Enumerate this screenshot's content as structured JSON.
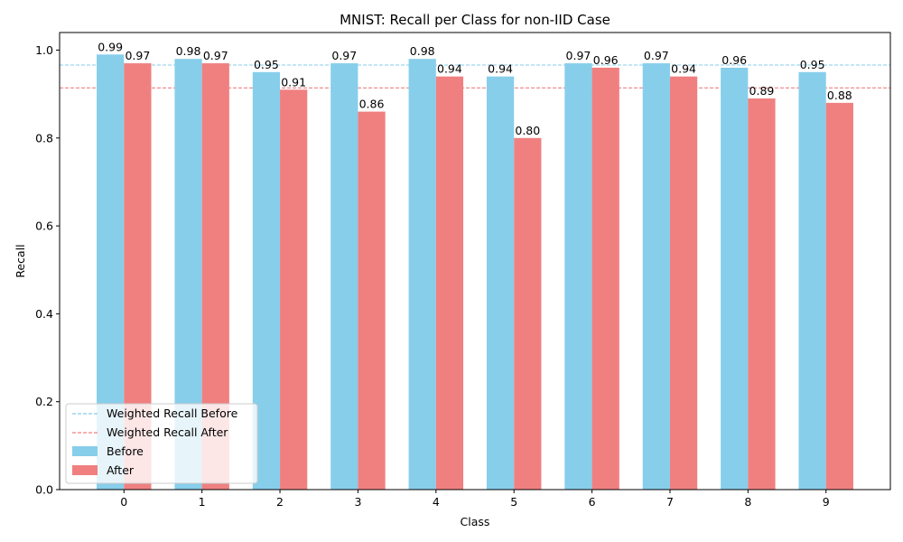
{
  "chart_data": {
    "type": "bar",
    "title": "MNIST: Recall per Class for non-IID Case",
    "xlabel": "Class",
    "ylabel": "Recall",
    "categories": [
      "0",
      "1",
      "2",
      "3",
      "4",
      "5",
      "6",
      "7",
      "8",
      "9"
    ],
    "series": [
      {
        "name": "Before",
        "color": "#87ceeb",
        "values": [
          0.99,
          0.98,
          0.95,
          0.97,
          0.98,
          0.94,
          0.97,
          0.97,
          0.96,
          0.95
        ],
        "labels": [
          "0.99",
          "0.98",
          "0.95",
          "0.97",
          "0.98",
          "0.94",
          "0.97",
          "0.97",
          "0.96",
          "0.95"
        ]
      },
      {
        "name": "After",
        "color": "#f08080",
        "values": [
          0.97,
          0.97,
          0.91,
          0.86,
          0.94,
          0.8,
          0.96,
          0.94,
          0.89,
          0.88
        ],
        "labels": [
          "0.97",
          "0.97",
          "0.91",
          "0.86",
          "0.94",
          "0.80",
          "0.96",
          "0.94",
          "0.89",
          "0.88"
        ]
      }
    ],
    "reference_lines": [
      {
        "name": "Weighted Recall Before",
        "value": 0.966,
        "color": "#87ceeb",
        "style": "dashed"
      },
      {
        "name": "Weighted Recall After",
        "value": 0.914,
        "color": "#f08080",
        "style": "dashed"
      }
    ],
    "ylim": [
      0,
      1.04
    ],
    "yticks": [
      0.0,
      0.2,
      0.4,
      0.6,
      0.8,
      1.0
    ],
    "ytick_labels": [
      "0.0",
      "0.2",
      "0.4",
      "0.6",
      "0.8",
      "1.0"
    ],
    "grid": false,
    "legend_position": "lower-left"
  }
}
